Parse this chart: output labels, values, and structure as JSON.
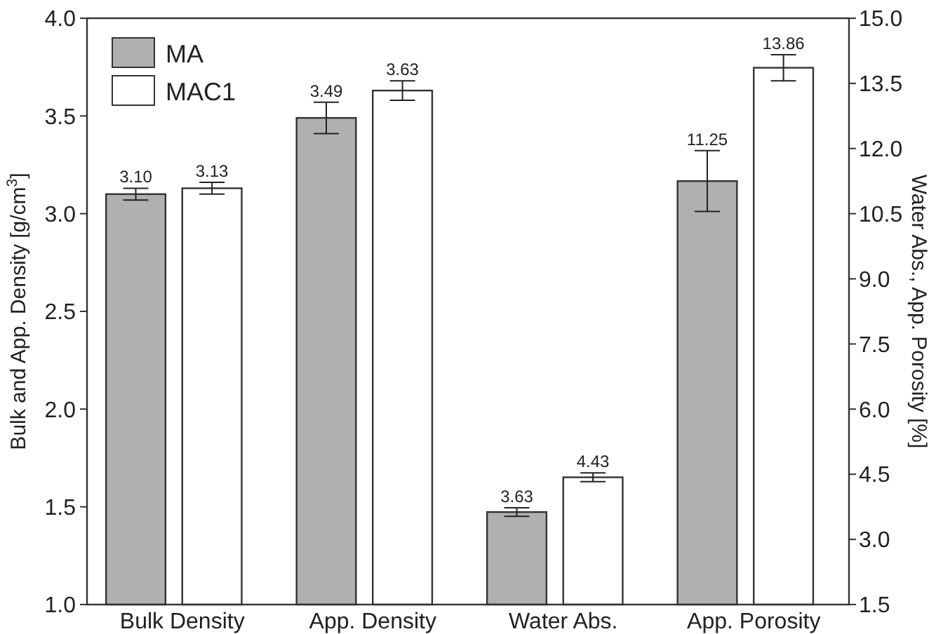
{
  "chart_data": {
    "type": "bar",
    "ylabel": "Bulk and App. Density [g/cm$^{3}$]",
    "y2label": "Water Abs., App. Porosity [%]",
    "categories": [
      "Bulk Density",
      "App. Density",
      "Water Abs.",
      "App. Porosity"
    ],
    "series": [
      {
        "name": "MA",
        "color": "#b0b0b0",
        "values": [
          3.1,
          3.49,
          null,
          null
        ],
        "errors": [
          0.03,
          0.08,
          null,
          null
        ],
        "value_labels": [
          "3.10",
          "3.49",
          null,
          null
        ]
      },
      {
        "name": "MAC1",
        "color": "#ffffff",
        "values": [
          3.13,
          3.63,
          null,
          null
        ],
        "errors": [
          0.03,
          0.05,
          null,
          null
        ],
        "value_labels": [
          "3.13",
          "3.63",
          null,
          null
        ]
      },
      {
        "color": "#b0b0b0",
        "axis": "y2",
        "values": [
          null,
          null,
          3.63,
          11.25
        ],
        "errors": [
          null,
          null,
          0.1,
          0.7
        ],
        "value_labels": [
          null,
          null,
          "3.63",
          "11.25"
        ]
      },
      {
        "color": "#ffffff",
        "axis": "y2",
        "values": [
          null,
          null,
          4.43,
          13.86
        ],
        "errors": [
          null,
          null,
          0.1,
          0.3
        ],
        "value_labels": [
          null,
          null,
          "4.43",
          "13.86"
        ]
      }
    ],
    "ylim": [
      1,
      4
    ],
    "yticks": [
      {
        "value": 1,
        "label": "1.0"
      },
      {
        "value": 1.5,
        "label": "1.5"
      },
      {
        "value": 2,
        "label": "2.0"
      },
      {
        "value": 2.5,
        "label": "2.5"
      },
      {
        "value": 3,
        "label": "3.0"
      },
      {
        "value": 3.5,
        "label": "3.5"
      },
      {
        "value": 4,
        "label": "4.0"
      }
    ],
    "y2lim": [
      1.5,
      15
    ],
    "y2ticks": [
      {
        "value": 1.5,
        "label": "1.5"
      },
      {
        "value": 3,
        "label": "3.0"
      },
      {
        "value": 4.5,
        "label": "4.5"
      },
      {
        "value": 6,
        "label": "6.0"
      },
      {
        "value": 7.5,
        "label": "7.5"
      },
      {
        "value": 9,
        "label": "9.0"
      },
      {
        "value": 10.5,
        "label": "10.5"
      },
      {
        "value": 12,
        "label": "12.0"
      },
      {
        "value": 13.5,
        "label": "13.5"
      },
      {
        "value": 15,
        "label": "15.0"
      }
    ],
    "legend": "top left",
    "grid": false
  }
}
